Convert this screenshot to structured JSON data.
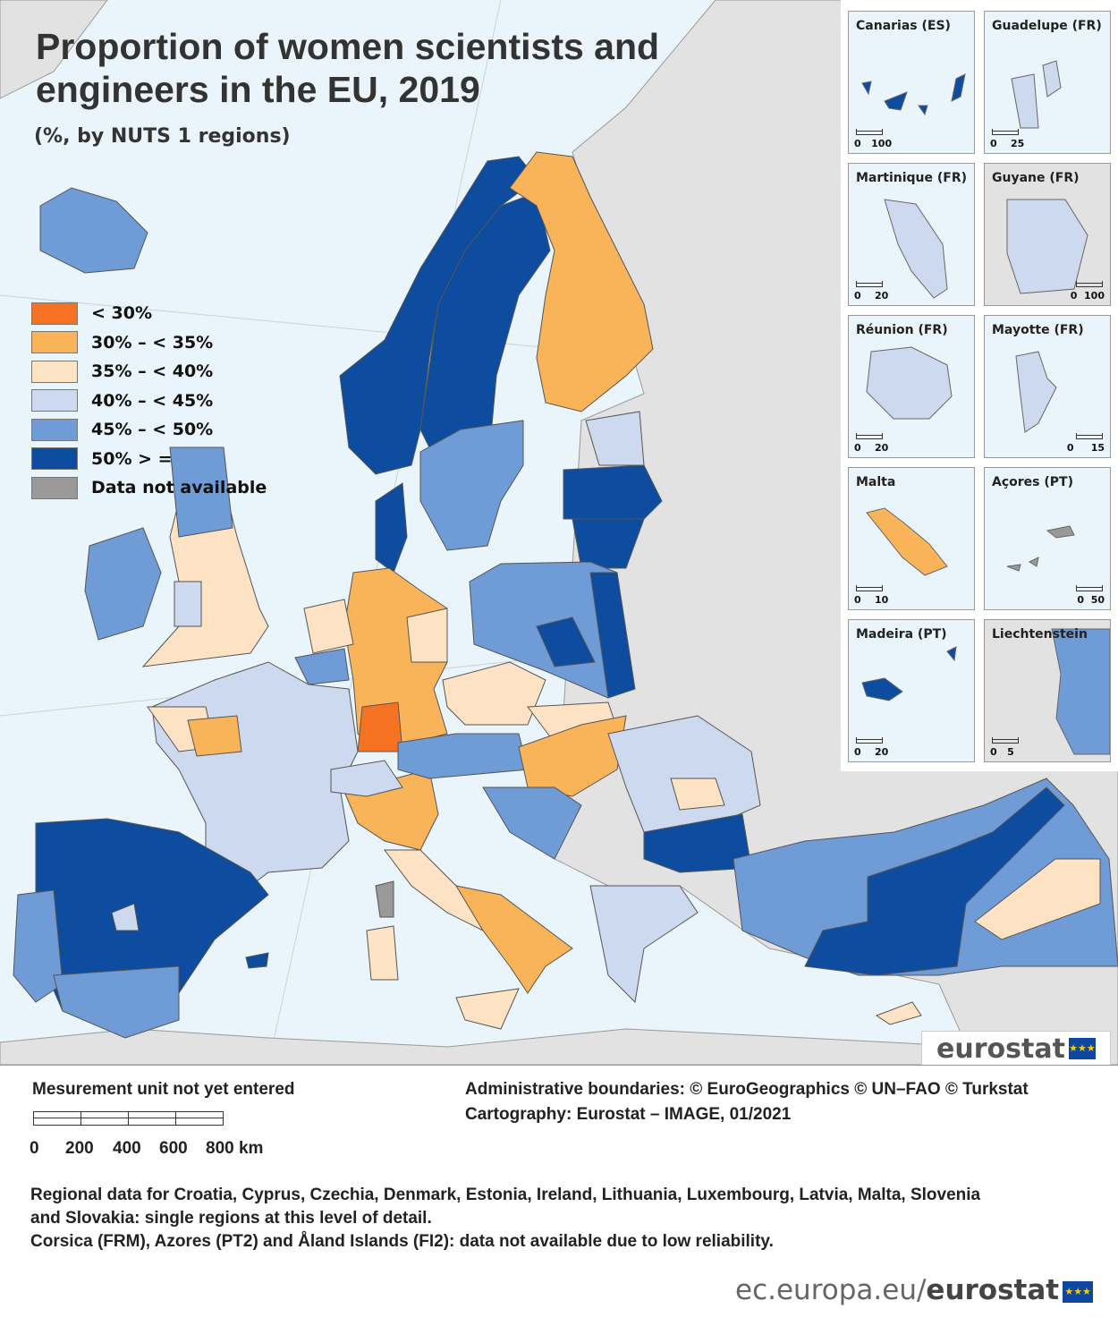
{
  "title": "Proportion of women scientists and engineers in the EU, 2019",
  "subtitle": "(%, by NUTS 1 regions)",
  "colors": {
    "sea": "#e9f5fb",
    "non_eu_land": "#e2e2e2"
  },
  "legend": [
    {
      "label": "< 30%",
      "color": "#f47222"
    },
    {
      "label": "30% – < 35%",
      "color": "#f9b45a"
    },
    {
      "label": "35% – < 40%",
      "color": "#fde3c3"
    },
    {
      "label": "40% – < 45%",
      "color": "#cdd9ef"
    },
    {
      "label": "45% – < 50%",
      "color": "#6f9bd6"
    },
    {
      "label": "50% > =",
      "color": "#0d4c9f"
    },
    {
      "label": "Data not available",
      "color": "#999999"
    }
  ],
  "insets": [
    {
      "name": "Canarias (ES)",
      "scale": "0   100"
    },
    {
      "name": "Guadelupe (FR)",
      "scale": "0    25"
    },
    {
      "name": "Martinique (FR)",
      "scale": "0    20"
    },
    {
      "name": "Guyane (FR)",
      "scale": "0  100"
    },
    {
      "name": "Réunion (FR)",
      "scale": "0    20"
    },
    {
      "name": "Mayotte (FR)",
      "scale": "0     15"
    },
    {
      "name": "Malta",
      "scale": "0    10"
    },
    {
      "name": "Açores (PT)",
      "scale": "0  50"
    },
    {
      "name": "Madeira (PT)",
      "scale": "0    20"
    },
    {
      "name": "Liechtenstein",
      "scale": "0   5"
    }
  ],
  "logo": {
    "text": "eurostat",
    "flag": "★★★"
  },
  "footer": {
    "unit_note": "Mesurement unit not yet entered",
    "scale_labels": [
      "0",
      "200",
      "400",
      "600",
      "800 km"
    ],
    "credits_1": "Administrative boundaries: © EuroGeographics © UN–FAO © Turkstat",
    "credits_2": "Cartography: Eurostat – IMAGE, 01/2021",
    "note_1": "Regional data for Croatia, Cyprus, Czechia, Denmark, Estonia, Ireland, Lithuania, Luxembourg, Latvia, Malta, Slovenia",
    "note_2": "and Slovakia: single regions at this level of detail.",
    "note_3": "Corsica (FRM), Azores (PT2) and Åland Islands (FI2): data not available due to low reliability.",
    "url_plain": "ec.europa.eu/",
    "url_bold": "eurostat"
  }
}
